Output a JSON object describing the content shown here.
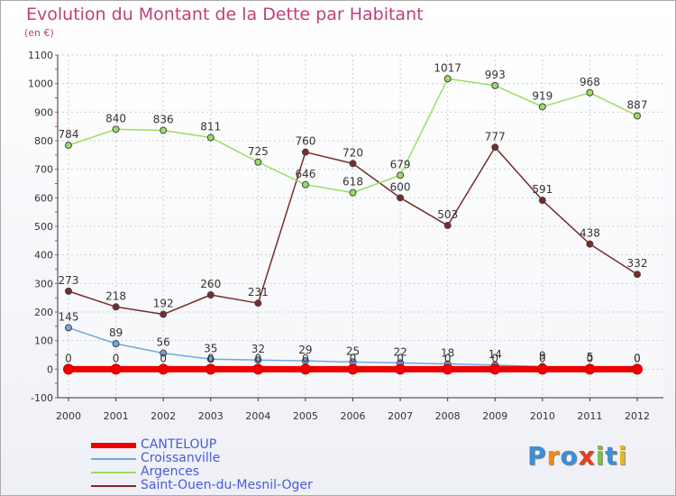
{
  "title": "Evolution du Montant de la Dette par Habitant",
  "subtitle": "(en €)",
  "logo": {
    "text": "Proxiti",
    "colors": [
      "#3a8fd8",
      "#f08a1c",
      "#3a8fd8",
      "#e63c1e",
      "#7cc242",
      "#3a8fd8",
      "#e6b81e"
    ]
  },
  "chart_data": {
    "type": "line",
    "x": [
      "2000",
      "2001",
      "2002",
      "2003",
      "2004",
      "2005",
      "2006",
      "2007",
      "2008",
      "2009",
      "2010",
      "2011",
      "2012"
    ],
    "ylim": [
      -100,
      1100
    ],
    "yticks": [
      "-100",
      "0",
      "100",
      "200",
      "300",
      "400",
      "500",
      "600",
      "700",
      "800",
      "900",
      "1000",
      "1100"
    ],
    "grid": true,
    "legend": "bottom-left",
    "series": [
      {
        "name": "CANTELOUP",
        "color": "#ee0000",
        "values": [
          0,
          0,
          0,
          0,
          0,
          0,
          0,
          0,
          0,
          0,
          0,
          0,
          0
        ],
        "labels": [
          "0",
          "0",
          "0",
          "0",
          "0",
          "0",
          "0",
          "0",
          "0",
          "0",
          "0",
          "0",
          "0"
        ]
      },
      {
        "name": "Croissanville",
        "color": "#6fa8dc",
        "values": [
          145,
          89,
          56,
          35,
          32,
          29,
          25,
          22,
          18,
          14,
          9,
          5,
          0
        ],
        "labels": [
          "145",
          "89",
          "56",
          "35",
          "32",
          "29",
          "25",
          "22",
          "18",
          "14",
          "9",
          "5",
          "0"
        ]
      },
      {
        "name": "Argences",
        "color": "#99dd66",
        "values": [
          784,
          840,
          836,
          811,
          725,
          646,
          618,
          679,
          1017,
          993,
          919,
          968,
          887
        ],
        "labels": [
          "784",
          "840",
          "836",
          "811",
          "725",
          "646",
          "618",
          "679",
          "1017",
          "993",
          "919",
          "968",
          "887"
        ]
      },
      {
        "name": "Saint-Ouen-du-Mesnil-Oger",
        "color": "#7a2a2a",
        "values": [
          273,
          218,
          192,
          260,
          231,
          760,
          720,
          600,
          503,
          777,
          591,
          438,
          332
        ],
        "labels": [
          "273",
          "218",
          "192",
          "260",
          "231",
          "760",
          "720",
          "600",
          "503",
          "777",
          "591",
          "438",
          "332"
        ]
      }
    ]
  }
}
